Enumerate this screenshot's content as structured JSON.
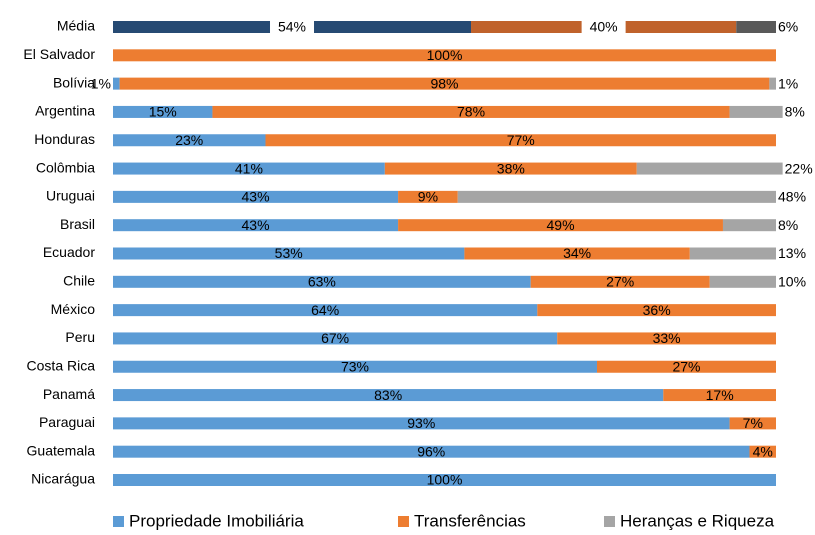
{
  "chart_data": {
    "type": "stacked_barh",
    "categories": [
      "Média",
      "El Salvador",
      "Bolívia",
      "Argentina",
      "Honduras",
      "Colômbia",
      "Uruguai",
      "Brasil",
      "Ecuador",
      "Chile",
      "México",
      "Peru",
      "Costa Rica",
      "Panamá",
      "Paraguai",
      "Guatemala",
      "Nicarágua"
    ],
    "series": [
      {
        "name": "Propriedade Imobiliária",
        "color": "#5b9bd5",
        "first_row_color": "#264a73",
        "values": [
          54,
          null,
          1,
          15,
          23,
          41,
          43,
          43,
          53,
          63,
          64,
          67,
          73,
          83,
          93,
          96,
          100
        ]
      },
      {
        "name": "Transferências",
        "color": "#ed7d31",
        "first_row_color": "#c0622b",
        "values": [
          40,
          100,
          98,
          78,
          77,
          38,
          9,
          49,
          34,
          27,
          36,
          33,
          27,
          17,
          7,
          4,
          null
        ]
      },
      {
        "name": "Heranças e Riqueza",
        "color": "#a5a5a5",
        "first_row_color": "#595959",
        "values": [
          6,
          null,
          1,
          8,
          null,
          22,
          48,
          8,
          13,
          10,
          null,
          null,
          null,
          null,
          null,
          null,
          null
        ]
      }
    ],
    "value_labels": [
      [
        "54%",
        null,
        "1%",
        "15%",
        "23%",
        "41%",
        "43%",
        "43%",
        "53%",
        "63%",
        "64%",
        "67%",
        "73%",
        "83%",
        "93%",
        "96%",
        "100%"
      ],
      [
        "40%",
        "100%",
        "98%",
        "78%",
        "77%",
        "38%",
        "9%",
        "49%",
        "34%",
        "27%",
        "36%",
        "33%",
        "27%",
        "17%",
        "7%",
        "4%",
        null
      ],
      [
        "6%",
        null,
        "1%",
        "8%",
        null,
        "22%",
        "48%",
        "8%",
        "13%",
        "10%",
        null,
        null,
        null,
        null,
        null,
        null,
        null
      ]
    ],
    "xlim": [
      0,
      100
    ]
  }
}
